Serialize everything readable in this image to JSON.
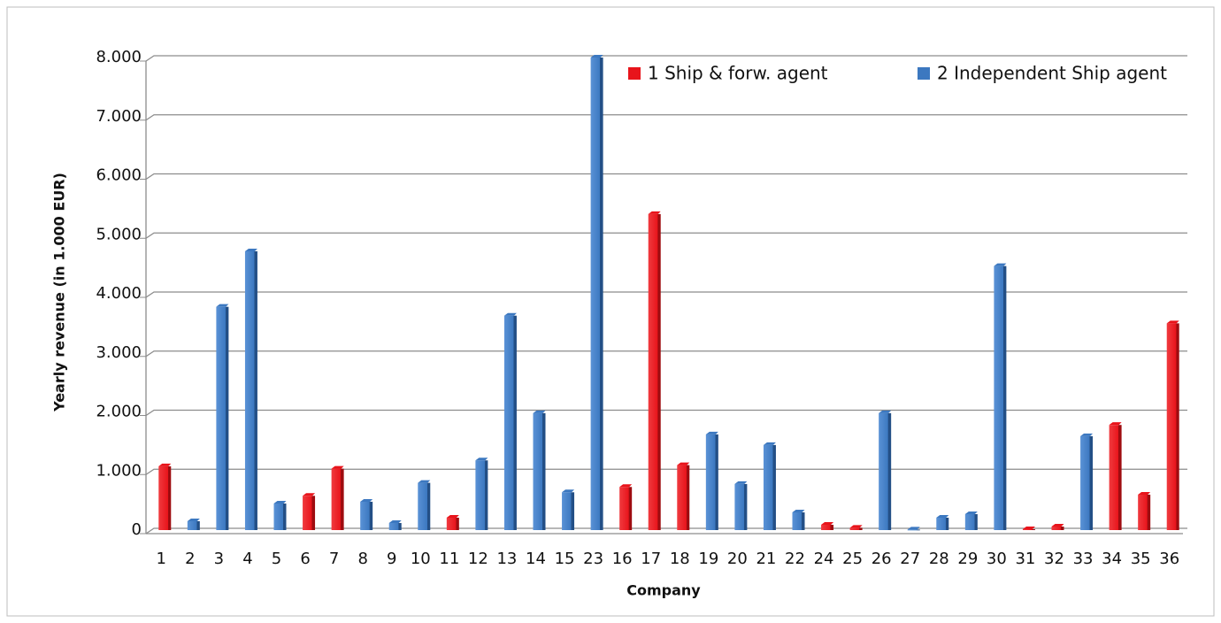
{
  "chart_data": {
    "type": "bar",
    "x_label": "Company",
    "y_label": "Yearly revenue (in 1.000 EUR)",
    "categories": [
      "1",
      "2",
      "3",
      "4",
      "5",
      "6",
      "7",
      "8",
      "9",
      "10",
      "11",
      "12",
      "13",
      "14",
      "15",
      "23",
      "16",
      "17",
      "18",
      "19",
      "20",
      "21",
      "22",
      "24",
      "25",
      "26",
      "27",
      "28",
      "29",
      "30",
      "31",
      "32",
      "33",
      "34",
      "35",
      "36"
    ],
    "series": [
      {
        "name": "1 Ship & forw. agent",
        "color": "#e8141b",
        "values": [
          1080,
          null,
          null,
          null,
          null,
          580,
          1040,
          null,
          null,
          null,
          210,
          null,
          null,
          null,
          null,
          null,
          730,
          5350,
          1100,
          null,
          null,
          null,
          null,
          90,
          40,
          null,
          null,
          null,
          null,
          null,
          15,
          60,
          null,
          1780,
          600,
          3500
        ]
      },
      {
        "name": "2 Independent Ship agent",
        "color": "#3c78c0",
        "values": [
          null,
          150,
          3780,
          4720,
          450,
          null,
          null,
          480,
          120,
          800,
          null,
          1180,
          3630,
          1980,
          640,
          8000,
          null,
          null,
          null,
          1620,
          780,
          1440,
          300,
          null,
          null,
          1980,
          10,
          210,
          270,
          4470,
          null,
          null,
          1590,
          null,
          null,
          null
        ]
      }
    ],
    "ylim": [
      0,
      8000
    ],
    "yticks": [
      0,
      {
        "value": 1000,
        "label": "1.000"
      },
      {
        "value": 2000,
        "label": "2.000"
      },
      {
        "value": 3000,
        "label": "3.000"
      },
      {
        "value": 4000,
        "label": "4.000"
      },
      {
        "value": 5000,
        "label": "5.000"
      },
      {
        "value": 6000,
        "label": "6.000"
      },
      {
        "value": 7000,
        "label": "7.000"
      },
      {
        "value": 8000,
        "label": "8.000"
      }
    ],
    "grid": true
  }
}
